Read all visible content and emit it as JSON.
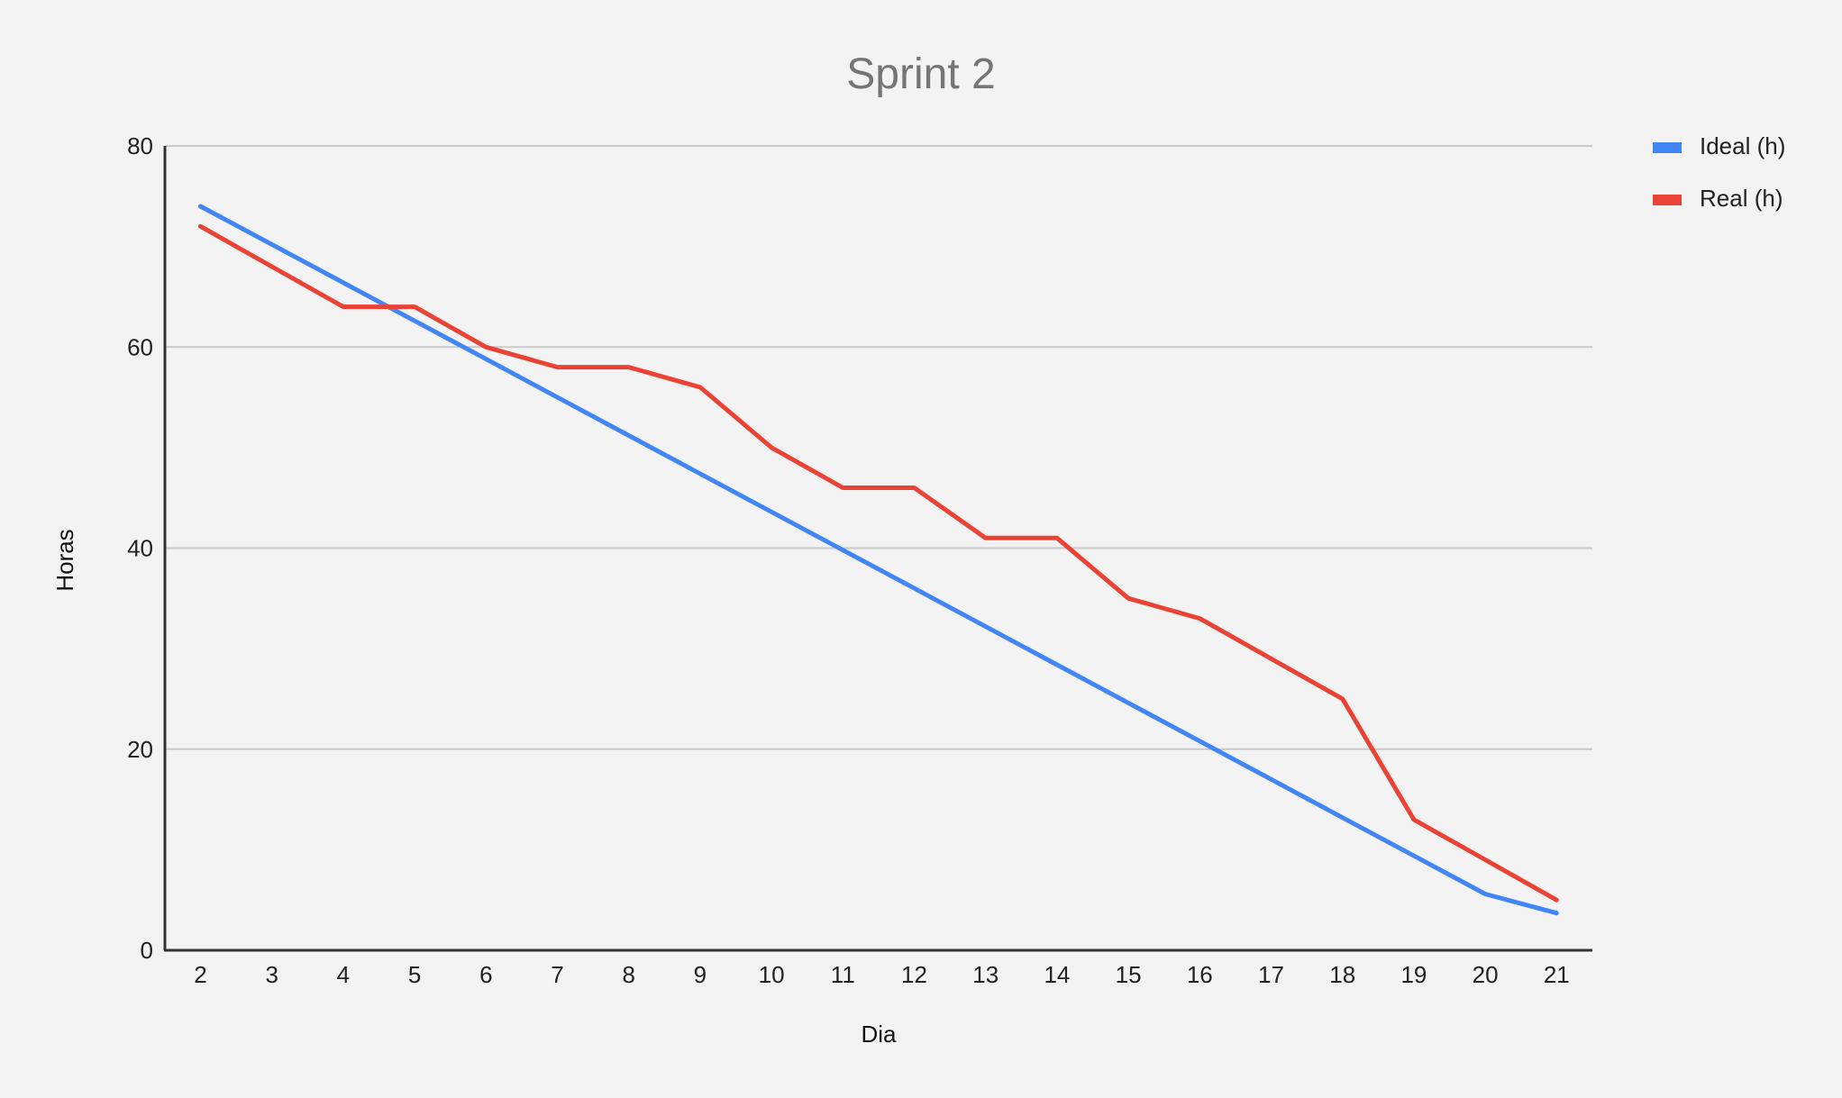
{
  "chart_data": {
    "type": "line",
    "title": "Sprint 2",
    "xlabel": "Dia",
    "ylabel": "Horas",
    "x": [
      2,
      3,
      4,
      5,
      6,
      7,
      8,
      9,
      10,
      11,
      12,
      13,
      14,
      15,
      16,
      17,
      18,
      19,
      20,
      21
    ],
    "ylim": [
      0,
      80
    ],
    "yticks": [
      0,
      20,
      40,
      60,
      80
    ],
    "grid": true,
    "legend_position": "right",
    "series": [
      {
        "name": "Ideal (h)",
        "color": "#4285f4",
        "values": [
          74,
          70.2,
          66.4,
          62.6,
          58.8,
          55.0,
          51.2,
          47.4,
          43.6,
          39.8,
          36.0,
          32.2,
          28.4,
          24.6,
          20.8,
          17.0,
          13.2,
          9.4,
          5.6,
          3.7
        ]
      },
      {
        "name": "Real (h)",
        "color": "#ea4335",
        "values": [
          72,
          68,
          64,
          64,
          60,
          58,
          58,
          56,
          50,
          46,
          46,
          41,
          41,
          35,
          33,
          29,
          25,
          13,
          9,
          5
        ]
      }
    ]
  }
}
